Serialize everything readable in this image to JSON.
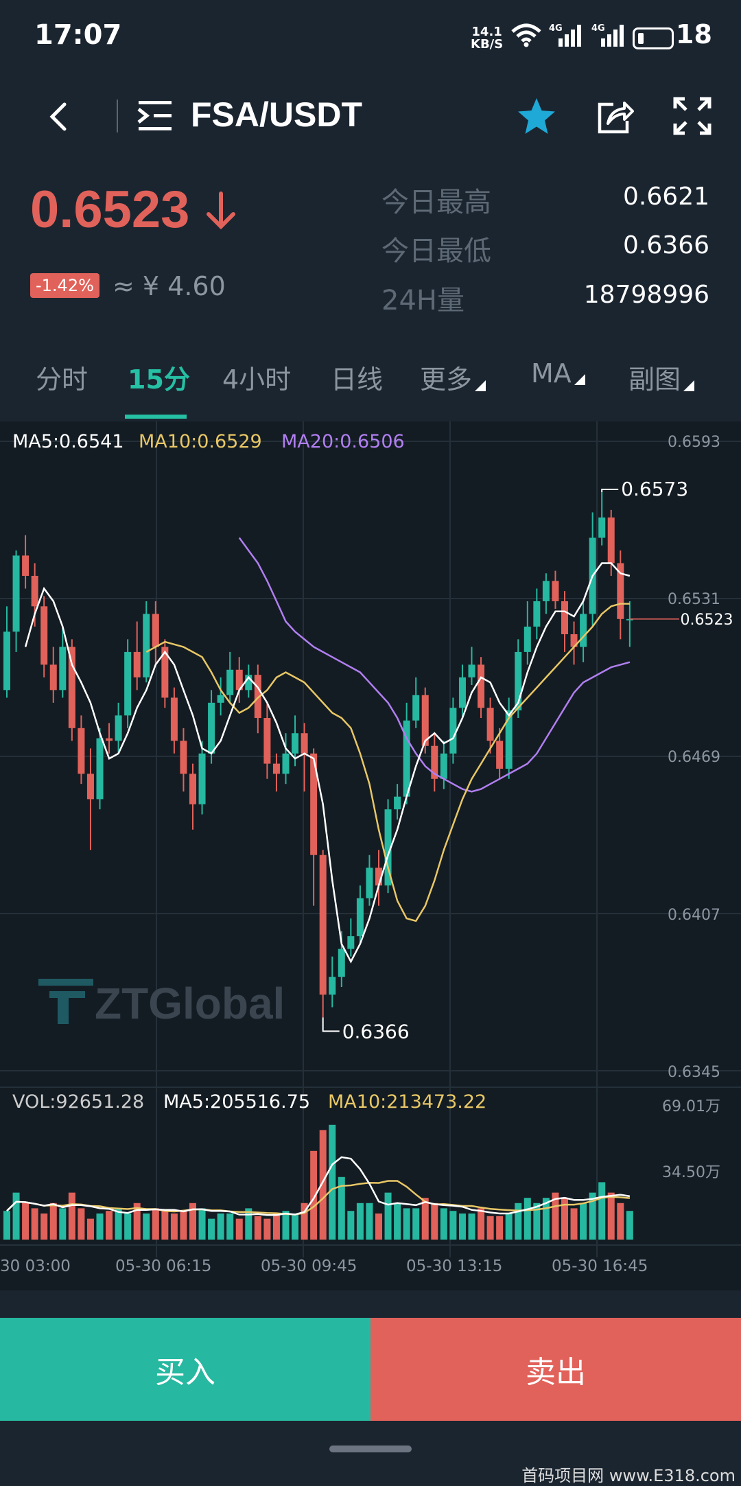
{
  "status_bar": {
    "time": "17:07",
    "net_speed": "14.1",
    "net_unit": "KB/S",
    "battery_level": "18",
    "signal_label": "4G"
  },
  "header": {
    "pair": "FSA/USDT",
    "icons": [
      "back-icon",
      "menu-icon",
      "star-icon",
      "share-icon",
      "expand-icon"
    ],
    "favorite_color": "#1fa9d6"
  },
  "ticker": {
    "price": "0.6523",
    "change": "-1.42%",
    "cny": "≈ ¥ 4.60",
    "stats": [
      {
        "label": "今日最高",
        "value": "0.6621"
      },
      {
        "label": "今日最低",
        "value": "0.6366"
      },
      {
        "label": "24H量",
        "value": "18798996"
      }
    ]
  },
  "tabs": [
    {
      "label": "分时",
      "active": false
    },
    {
      "label": "15分",
      "active": true
    },
    {
      "label": "4小时",
      "active": false
    },
    {
      "label": "日线",
      "active": false
    },
    {
      "label": "更多",
      "active": false
    },
    {
      "label": "MA",
      "active": false
    },
    {
      "label": "副图",
      "active": false
    }
  ],
  "chart_data": {
    "type": "candlestick",
    "indicators": {
      "ma5": "MA5:0.6541",
      "ma10": "MA10:0.6529",
      "ma20": "MA20:0.6506"
    },
    "price_axis": [
      "0.6593",
      "0.6531",
      "0.6469",
      "0.6407",
      "0.6345"
    ],
    "high_marker": "0.6573",
    "low_marker": "0.6366",
    "current_marker": "0.6523",
    "volume": {
      "vol": "VOL:92651.28",
      "ma5": "MA5:205516.75",
      "ma10": "MA10:213473.22",
      "axis": [
        "69.01万",
        "34.50万"
      ]
    },
    "time_axis": [
      "30 03:00",
      "05-30 06:15",
      "05-30 09:45",
      "05-30 13:15",
      "05-30 16:45"
    ],
    "watermark": "ZTGlobal",
    "colors": {
      "up": "#26b8a0",
      "down": "#e1625a",
      "ma5": "#ffffff",
      "ma10": "#e8c766",
      "ma20": "#b07ff0"
    },
    "candles": [
      [
        0.6495,
        0.6518,
        0.6528,
        0.6492
      ],
      [
        0.6518,
        0.6548,
        0.655,
        0.651
      ],
      [
        0.6548,
        0.654,
        0.6556,
        0.6535
      ],
      [
        0.654,
        0.6528,
        0.6545,
        0.652
      ],
      [
        0.6528,
        0.6505,
        0.6532,
        0.65
      ],
      [
        0.6505,
        0.6495,
        0.6512,
        0.649
      ],
      [
        0.6495,
        0.6512,
        0.652,
        0.6492
      ],
      [
        0.6512,
        0.648,
        0.6515,
        0.6475
      ],
      [
        0.648,
        0.6462,
        0.6485,
        0.6458
      ],
      [
        0.6462,
        0.6452,
        0.6472,
        0.6432
      ],
      [
        0.6452,
        0.6476,
        0.648,
        0.6448
      ],
      [
        0.6476,
        0.6475,
        0.6482,
        0.647
      ],
      [
        0.6475,
        0.6485,
        0.649,
        0.647
      ],
      [
        0.6485,
        0.651,
        0.6515,
        0.648
      ],
      [
        0.651,
        0.65,
        0.6522,
        0.6495
      ],
      [
        0.65,
        0.6525,
        0.653,
        0.6498
      ],
      [
        0.6525,
        0.6512,
        0.653,
        0.6505
      ],
      [
        0.6512,
        0.6492,
        0.6515,
        0.6488
      ],
      [
        0.6492,
        0.6475,
        0.6496,
        0.647
      ],
      [
        0.6475,
        0.6462,
        0.648,
        0.6455
      ],
      [
        0.6462,
        0.645,
        0.6466,
        0.644
      ],
      [
        0.645,
        0.647,
        0.6475,
        0.6446
      ],
      [
        0.647,
        0.649,
        0.6495,
        0.6466
      ],
      [
        0.649,
        0.6493,
        0.65,
        0.6485
      ],
      [
        0.6493,
        0.6503,
        0.651,
        0.649
      ],
      [
        0.6503,
        0.6495,
        0.6508,
        0.649
      ],
      [
        0.6495,
        0.6501,
        0.6505,
        0.6492
      ],
      [
        0.6501,
        0.6484,
        0.6505,
        0.6478
      ],
      [
        0.6484,
        0.6466,
        0.649,
        0.646
      ],
      [
        0.6466,
        0.6462,
        0.647,
        0.6455
      ],
      [
        0.6462,
        0.647,
        0.6478,
        0.6458
      ],
      [
        0.647,
        0.6478,
        0.6485,
        0.6465
      ],
      [
        0.6478,
        0.647,
        0.6482,
        0.6455
      ],
      [
        0.647,
        0.643,
        0.6472,
        0.641
      ],
      [
        0.643,
        0.6375,
        0.6432,
        0.6366
      ],
      [
        0.6375,
        0.6382,
        0.639,
        0.637
      ],
      [
        0.6382,
        0.6393,
        0.64,
        0.6378
      ],
      [
        0.6393,
        0.6398,
        0.6405,
        0.639
      ],
      [
        0.6398,
        0.6413,
        0.6418,
        0.6395
      ],
      [
        0.6413,
        0.6425,
        0.643,
        0.641
      ],
      [
        0.6425,
        0.6418,
        0.6432,
        0.641
      ],
      [
        0.6418,
        0.6448,
        0.6452,
        0.6415
      ],
      [
        0.6448,
        0.6453,
        0.6458,
        0.6444
      ],
      [
        0.6453,
        0.6483,
        0.649,
        0.645
      ],
      [
        0.6483,
        0.6493,
        0.65,
        0.648
      ],
      [
        0.6493,
        0.6473,
        0.6496,
        0.647
      ],
      [
        0.6473,
        0.646,
        0.6478,
        0.6455
      ],
      [
        0.646,
        0.647,
        0.6475,
        0.6456
      ],
      [
        0.647,
        0.6488,
        0.6492,
        0.6466
      ],
      [
        0.6488,
        0.65,
        0.6505,
        0.6484
      ],
      [
        0.65,
        0.6505,
        0.6512,
        0.6497
      ],
      [
        0.6505,
        0.6488,
        0.6508,
        0.6484
      ],
      [
        0.6488,
        0.6475,
        0.6492,
        0.647
      ],
      [
        0.6475,
        0.6464,
        0.648,
        0.646
      ],
      [
        0.6464,
        0.6487,
        0.6492,
        0.646
      ],
      [
        0.6487,
        0.651,
        0.6515,
        0.6484
      ],
      [
        0.651,
        0.652,
        0.653,
        0.6505
      ],
      [
        0.652,
        0.653,
        0.6535,
        0.6515
      ],
      [
        0.653,
        0.6538,
        0.6541,
        0.6525
      ],
      [
        0.6538,
        0.653,
        0.6542,
        0.6527
      ],
      [
        0.653,
        0.6517,
        0.6534,
        0.651
      ],
      [
        0.6517,
        0.6512,
        0.6522,
        0.6505
      ],
      [
        0.6512,
        0.6525,
        0.653,
        0.6506
      ],
      [
        0.6525,
        0.6555,
        0.6565,
        0.652
      ],
      [
        0.6555,
        0.6563,
        0.6573,
        0.6552
      ],
      [
        0.6563,
        0.6545,
        0.6566,
        0.654
      ],
      [
        0.6545,
        0.6523,
        0.655,
        0.6515
      ],
      [
        0.6523,
        0.6523,
        0.653,
        0.6512
      ]
    ],
    "volumes": [
      0.55,
      0.9,
      0.7,
      0.6,
      0.5,
      0.7,
      0.6,
      0.9,
      0.6,
      0.4,
      0.5,
      0.55,
      0.6,
      0.5,
      0.7,
      0.5,
      0.6,
      0.55,
      0.5,
      0.55,
      0.7,
      0.6,
      0.4,
      0.5,
      0.5,
      0.4,
      0.6,
      0.45,
      0.4,
      0.5,
      0.55,
      0.5,
      0.7,
      1.7,
      2.1,
      2.2,
      1.2,
      0.55,
      0.7,
      0.7,
      0.5,
      0.9,
      0.7,
      0.6,
      0.6,
      0.8,
      0.7,
      0.6,
      0.55,
      0.5,
      0.5,
      0.6,
      0.45,
      0.45,
      0.5,
      0.7,
      0.8,
      0.7,
      0.8,
      0.9,
      0.8,
      0.6,
      0.7,
      0.9,
      1.1,
      0.9,
      0.7,
      0.55
    ],
    "ma5": [
      0.6512,
      0.6525,
      0.6535,
      0.653,
      0.652,
      0.6505,
      0.6498,
      0.649,
      0.6478,
      0.6468,
      0.647,
      0.6478,
      0.6488,
      0.6495,
      0.6505,
      0.651,
      0.6505,
      0.6495,
      0.6485,
      0.6472,
      0.647,
      0.6475,
      0.6485,
      0.6495,
      0.65,
      0.6496,
      0.649,
      0.6482,
      0.6472,
      0.6468,
      0.647,
      0.6468,
      0.645,
      0.642,
      0.6395,
      0.6388,
      0.6395,
      0.6405,
      0.6418,
      0.643,
      0.644,
      0.6453,
      0.6465,
      0.6475,
      0.6478,
      0.6474,
      0.6476,
      0.6484,
      0.6494,
      0.65,
      0.6498,
      0.649,
      0.6485,
      0.649,
      0.6502,
      0.6512,
      0.652,
      0.6526,
      0.6526,
      0.6524,
      0.653,
      0.654,
      0.6545,
      0.6545,
      0.6541,
      0.654
    ],
    "ma10": [
      0.651,
      0.6512,
      0.6514,
      0.6513,
      0.6512,
      0.651,
      0.6508,
      0.6502,
      0.6495,
      0.649,
      0.6486,
      0.6488,
      0.6492,
      0.6495,
      0.65,
      0.6502,
      0.65,
      0.6498,
      0.6494,
      0.649,
      0.6486,
      0.6484,
      0.648,
      0.647,
      0.6458,
      0.644,
      0.6425,
      0.6412,
      0.6405,
      0.6404,
      0.641,
      0.642,
      0.6432,
      0.6442,
      0.6452,
      0.646,
      0.6466,
      0.6472,
      0.6478,
      0.6484,
      0.6488,
      0.6492,
      0.6496,
      0.65,
      0.6504,
      0.6508,
      0.6512,
      0.6516,
      0.652,
      0.6525,
      0.6528,
      0.6529,
      0.6529
    ],
    "ma20": [
      0.6555,
      0.655,
      0.6545,
      0.6538,
      0.653,
      0.6522,
      0.6518,
      0.6515,
      0.6512,
      0.651,
      0.6508,
      0.6506,
      0.6504,
      0.6502,
      0.6498,
      0.6494,
      0.649,
      0.6484,
      0.6476,
      0.647,
      0.6465,
      0.6462,
      0.646,
      0.6458,
      0.6456,
      0.6455,
      0.6456,
      0.6458,
      0.646,
      0.6462,
      0.6464,
      0.6466,
      0.647,
      0.6476,
      0.6482,
      0.6488,
      0.6494,
      0.6498,
      0.65,
      0.6502,
      0.6504,
      0.6505,
      0.6506
    ]
  },
  "actions": {
    "buy": "买入",
    "sell": "卖出"
  },
  "footer_watermark": "首码项目网 www.E318.com"
}
